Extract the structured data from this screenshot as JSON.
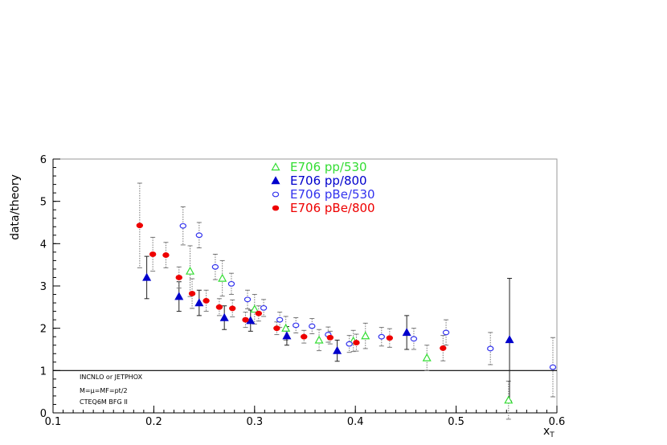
{
  "chart_data": {
    "type": "scatter",
    "xlabel": "x",
    "xlabel_sub": "T",
    "ylabel": "data/theory",
    "xlim": [
      0.1,
      0.6
    ],
    "ylim": [
      0,
      6
    ],
    "xticks": [
      0.1,
      0.2,
      0.3,
      0.4,
      0.5,
      0.6
    ],
    "xtick_labels": [
      "0.1",
      "0.2",
      "0.3",
      "0.4",
      "0.5",
      "0.6"
    ],
    "yticks": [
      0,
      1,
      2,
      3,
      4,
      5,
      6
    ],
    "ytick_labels": [
      "0",
      "1",
      "2",
      "3",
      "4",
      "5",
      "6"
    ],
    "reference_line": 1,
    "legend_position": "top-center",
    "annotations": [
      "INCNLO or JETPHOX",
      "M=μ=MF=pt/2",
      "CTEQ6M BFG II"
    ],
    "series": [
      {
        "name": "E706 pp/530",
        "color": "#33dd33",
        "marker": "triangle-open",
        "points": [
          {
            "x": 0.236,
            "y": 3.35,
            "err": 0.6
          },
          {
            "x": 0.268,
            "y": 3.18,
            "err": 0.42
          },
          {
            "x": 0.3,
            "y": 2.45,
            "err": 0.35
          },
          {
            "x": 0.331,
            "y": 2.0,
            "err": 0.28
          },
          {
            "x": 0.364,
            "y": 1.72,
            "err": 0.25
          },
          {
            "x": 0.398,
            "y": 1.7,
            "err": 0.25
          },
          {
            "x": 0.41,
            "y": 1.82,
            "err": 0.3
          },
          {
            "x": 0.471,
            "y": 1.3,
            "err": 0.3
          },
          {
            "x": 0.552,
            "y": 0.3,
            "err": 0.45
          }
        ]
      },
      {
        "name": "E706 pp/800",
        "color": "#0000cc",
        "marker": "triangle-filled",
        "points": [
          {
            "x": 0.193,
            "y": 3.2,
            "err": 0.5
          },
          {
            "x": 0.225,
            "y": 2.75,
            "err": 0.35
          },
          {
            "x": 0.245,
            "y": 2.6,
            "err": 0.3
          },
          {
            "x": 0.27,
            "y": 2.25,
            "err": 0.28
          },
          {
            "x": 0.296,
            "y": 2.18,
            "err": 0.25
          },
          {
            "x": 0.332,
            "y": 1.82,
            "err": 0.22
          },
          {
            "x": 0.382,
            "y": 1.47,
            "err": 0.25
          },
          {
            "x": 0.451,
            "y": 1.9,
            "err": 0.4
          },
          {
            "x": 0.553,
            "y": 1.73,
            "err": 1.45
          }
        ]
      },
      {
        "name": "E706 pBe/530",
        "color": "#3333ee",
        "marker": "circle-open",
        "points": [
          {
            "x": 0.229,
            "y": 4.42,
            "err": 0.45
          },
          {
            "x": 0.245,
            "y": 4.2,
            "err": 0.3
          },
          {
            "x": 0.261,
            "y": 3.45,
            "err": 0.3
          },
          {
            "x": 0.277,
            "y": 3.05,
            "err": 0.25
          },
          {
            "x": 0.293,
            "y": 2.68,
            "err": 0.22
          },
          {
            "x": 0.309,
            "y": 2.48,
            "err": 0.2
          },
          {
            "x": 0.325,
            "y": 2.2,
            "err": 0.18
          },
          {
            "x": 0.341,
            "y": 2.07,
            "err": 0.18
          },
          {
            "x": 0.357,
            "y": 2.05,
            "err": 0.18
          },
          {
            "x": 0.373,
            "y": 1.85,
            "err": 0.18
          },
          {
            "x": 0.394,
            "y": 1.63,
            "err": 0.2
          },
          {
            "x": 0.426,
            "y": 1.8,
            "err": 0.22
          },
          {
            "x": 0.458,
            "y": 1.75,
            "err": 0.25
          },
          {
            "x": 0.49,
            "y": 1.9,
            "err": 0.3
          },
          {
            "x": 0.534,
            "y": 1.52,
            "err": 0.38
          },
          {
            "x": 0.596,
            "y": 1.08,
            "err": 0.7
          }
        ]
      },
      {
        "name": "E706 pBe/800",
        "color": "#ee0000",
        "marker": "circle-filled",
        "points": [
          {
            "x": 0.186,
            "y": 4.43,
            "err": 1.0
          },
          {
            "x": 0.199,
            "y": 3.75,
            "err": 0.4
          },
          {
            "x": 0.212,
            "y": 3.73,
            "err": 0.3
          },
          {
            "x": 0.225,
            "y": 3.2,
            "err": 0.25
          },
          {
            "x": 0.238,
            "y": 2.82,
            "err": 0.35
          },
          {
            "x": 0.252,
            "y": 2.65,
            "err": 0.25
          },
          {
            "x": 0.265,
            "y": 2.5,
            "err": 0.2
          },
          {
            "x": 0.278,
            "y": 2.47,
            "err": 0.2
          },
          {
            "x": 0.291,
            "y": 2.2,
            "err": 0.18
          },
          {
            "x": 0.304,
            "y": 2.35,
            "err": 0.18
          },
          {
            "x": 0.322,
            "y": 2.0,
            "err": 0.15
          },
          {
            "x": 0.349,
            "y": 1.8,
            "err": 0.15
          },
          {
            "x": 0.375,
            "y": 1.78,
            "err": 0.15
          },
          {
            "x": 0.401,
            "y": 1.66,
            "err": 0.2
          },
          {
            "x": 0.434,
            "y": 1.77,
            "err": 0.22
          },
          {
            "x": 0.487,
            "y": 1.53,
            "err": 0.3
          }
        ]
      }
    ]
  }
}
